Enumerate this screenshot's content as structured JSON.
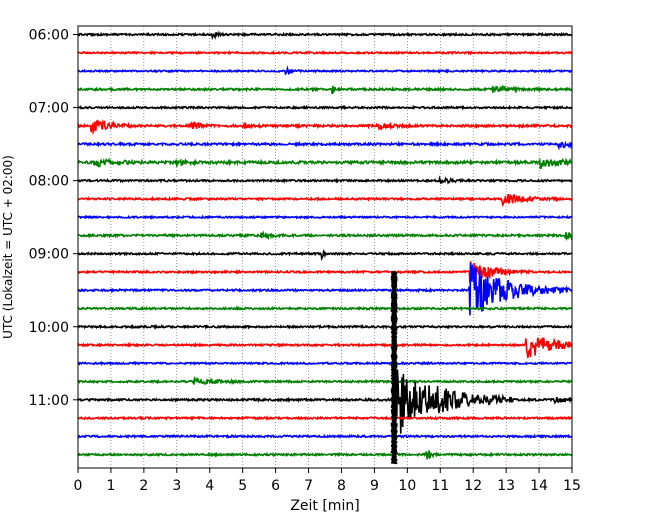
{
  "chart_data": {
    "type": "line",
    "title": "",
    "xlabel": "Zeit  [min]",
    "ylabel": "UTC (Lokalzeit = UTC + 02:00)",
    "xlim": [
      0,
      15
    ],
    "x_ticks": [
      "0",
      "1",
      "2",
      "3",
      "4",
      "5",
      "6",
      "7",
      "8",
      "9",
      "10",
      "11",
      "12",
      "13",
      "14",
      "15"
    ],
    "y_ticks": [
      "06:00",
      "07:00",
      "08:00",
      "09:00",
      "10:00",
      "11:00"
    ],
    "grid": "vertical dotted",
    "colors": [
      "#000000",
      "#ff0000",
      "#0000ff",
      "#008000"
    ],
    "trace_interval_min": 15,
    "traces": [
      {
        "start": "06:00",
        "color": "#000000",
        "noise": 0.9,
        "events": [
          {
            "t": 4.1,
            "amp": 5,
            "dur": 0.1
          }
        ]
      },
      {
        "start": "06:15",
        "color": "#ff0000",
        "noise": 0.8,
        "events": []
      },
      {
        "start": "06:30",
        "color": "#0000ff",
        "noise": 0.8,
        "events": [
          {
            "t": 6.3,
            "amp": 3,
            "dur": 0.2
          }
        ]
      },
      {
        "start": "06:45",
        "color": "#008000",
        "noise": 1.0,
        "events": [
          {
            "t": 7.7,
            "amp": 5,
            "dur": 0.1
          },
          {
            "t": 12.6,
            "amp": 3,
            "dur": 0.4
          }
        ]
      },
      {
        "start": "07:00",
        "color": "#000000",
        "noise": 0.9,
        "events": []
      },
      {
        "start": "07:15",
        "color": "#ff0000",
        "noise": 1.1,
        "events": [
          {
            "t": 0.4,
            "amp": 6,
            "dur": 0.5
          },
          {
            "t": 3.4,
            "amp": 4,
            "dur": 0.3
          },
          {
            "t": 5.0,
            "amp": 3,
            "dur": 0.2
          },
          {
            "t": 9.1,
            "amp": 3,
            "dur": 0.3
          }
        ]
      },
      {
        "start": "07:30",
        "color": "#0000ff",
        "noise": 1.1,
        "events": [
          {
            "t": 14.6,
            "amp": 4,
            "dur": 0.4
          }
        ]
      },
      {
        "start": "07:45",
        "color": "#008000",
        "noise": 1.3,
        "events": [
          {
            "t": 0.5,
            "amp": 4,
            "dur": 0.5
          },
          {
            "t": 3.0,
            "amp": 3,
            "dur": 0.2
          },
          {
            "t": 14.0,
            "amp": 5,
            "dur": 0.6
          }
        ]
      },
      {
        "start": "08:00",
        "color": "#000000",
        "noise": 0.9,
        "events": [
          {
            "t": 11.0,
            "amp": 3,
            "dur": 0.3
          }
        ]
      },
      {
        "start": "08:15",
        "color": "#ff0000",
        "noise": 0.9,
        "events": [
          {
            "t": 12.9,
            "amp": 6,
            "dur": 0.6
          }
        ]
      },
      {
        "start": "08:30",
        "color": "#0000ff",
        "noise": 0.8,
        "events": []
      },
      {
        "start": "08:45",
        "color": "#008000",
        "noise": 1.0,
        "events": [
          {
            "t": 5.5,
            "amp": 3,
            "dur": 0.3
          },
          {
            "t": 14.8,
            "amp": 3,
            "dur": 0.3
          }
        ]
      },
      {
        "start": "09:00",
        "color": "#000000",
        "noise": 0.9,
        "events": [
          {
            "t": 7.4,
            "amp": 6,
            "dur": 0.05
          }
        ]
      },
      {
        "start": "09:15",
        "color": "#ff0000",
        "noise": 0.9,
        "events": [
          {
            "t": 11.9,
            "amp": 12,
            "dur": 0.6
          }
        ]
      },
      {
        "start": "09:30",
        "color": "#0000ff",
        "noise": 0.9,
        "events": [
          {
            "t": 11.9,
            "amp": 30,
            "dur": 1.0
          }
        ]
      },
      {
        "start": "09:45",
        "color": "#008000",
        "noise": 0.9,
        "events": []
      },
      {
        "start": "10:00",
        "color": "#000000",
        "noise": 0.9,
        "events": []
      },
      {
        "start": "10:15",
        "color": "#ff0000",
        "noise": 0.9,
        "events": [
          {
            "t": 13.6,
            "amp": 14,
            "dur": 0.8
          }
        ]
      },
      {
        "start": "10:30",
        "color": "#0000ff",
        "noise": 0.8,
        "events": []
      },
      {
        "start": "10:45",
        "color": "#008000",
        "noise": 0.9,
        "events": [
          {
            "t": 3.5,
            "amp": 3,
            "dur": 0.6
          }
        ]
      },
      {
        "start": "11:00",
        "color": "#000000",
        "noise": 1.0,
        "events": [
          {
            "t": 9.6,
            "amp": 40,
            "dur": 1.2
          },
          {
            "t": 14.5,
            "amp": 4,
            "dur": 0.2
          }
        ]
      },
      {
        "start": "11:15",
        "color": "#ff0000",
        "noise": 0.9,
        "events": []
      },
      {
        "start": "11:30",
        "color": "#0000ff",
        "noise": 0.9,
        "events": []
      },
      {
        "start": "11:45",
        "color": "#008000",
        "noise": 0.9,
        "events": [
          {
            "t": 10.6,
            "amp": 8,
            "dur": 0.1
          }
        ]
      }
    ],
    "big_spike": {
      "t": 9.6,
      "from": "09:15",
      "to": "11:52"
    }
  }
}
